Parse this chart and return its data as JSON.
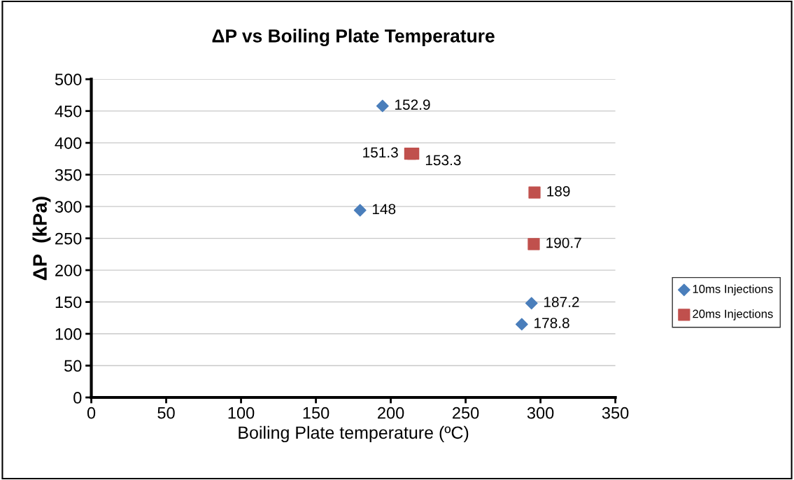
{
  "chart_data": {
    "type": "scatter",
    "title": "ΔP vs Boiling Plate Temperature",
    "xlabel": "Boiling Plate temperature (ºC)",
    "ylabel": "ΔP  (kPa)",
    "xlim": [
      0,
      350
    ],
    "xticks": [
      0,
      50,
      100,
      150,
      200,
      250,
      300,
      350
    ],
    "ylim": [
      0,
      500
    ],
    "yticks": [
      0,
      50,
      100,
      150,
      200,
      250,
      300,
      350,
      400,
      450,
      500
    ],
    "grid": "y",
    "legend": "right",
    "series": [
      {
        "name": "10ms Injections",
        "color": "#4a7ebb",
        "marker": "diamond",
        "x": [
          194.5,
          179.5,
          294,
          287.5
        ],
        "values": [
          458,
          294,
          148,
          115
        ]
      },
      {
        "name": "20ms Injections",
        "color": "#c0504d",
        "marker": "square",
        "x": [
          213,
          215,
          296,
          295.5
        ],
        "values": [
          383,
          383,
          322,
          241
        ]
      }
    ],
    "annotations": [
      {
        "text": "152.9",
        "x": 194.5,
        "y": 458
      },
      {
        "text": "148",
        "x": 179.5,
        "y": 294
      },
      {
        "text": "187.2",
        "x": 294,
        "y": 148
      },
      {
        "text": "178.8",
        "x": 287.5,
        "y": 115
      },
      {
        "text": "151.3",
        "x": 213,
        "y": 383
      },
      {
        "text": "153.3",
        "x": 215,
        "y": 383
      },
      {
        "text": "189",
        "x": 296,
        "y": 322
      },
      {
        "text": "190.7",
        "x": 295.5,
        "y": 241
      }
    ]
  }
}
